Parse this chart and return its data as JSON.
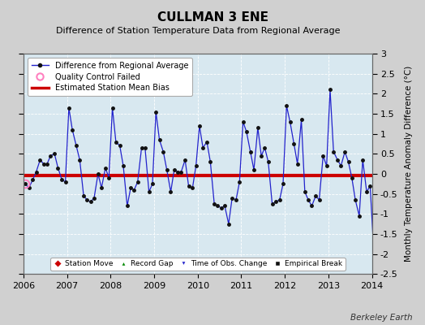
{
  "title": "CULLMAN 3 ENE",
  "subtitle": "Difference of Station Temperature Data from Regional Average",
  "ylabel": "Monthly Temperature Anomaly Difference (°C)",
  "xlabel_years": [
    2006,
    2007,
    2008,
    2009,
    2010,
    2011,
    2012,
    2013,
    2014
  ],
  "ylim": [
    -2.5,
    3.0
  ],
  "yticks": [
    -2.5,
    -2,
    -1.5,
    -1,
    -0.5,
    0,
    0.5,
    1,
    1.5,
    2,
    2.5,
    3
  ],
  "ytick_labels": [
    "-2.5",
    "-2",
    "-1.5",
    "-1",
    "-0.5",
    "0",
    "0.5",
    "1",
    "1.5",
    "2",
    "2.5",
    "3"
  ],
  "bias_value": -0.05,
  "fig_bg_color": "#d0d0d0",
  "plot_bg_color": "#d8e8f0",
  "line_color": "#2222cc",
  "bias_color": "#cc0000",
  "qc_color": "#ff80c0",
  "watermark": "Berkeley Earth",
  "times": [
    2006.04,
    2006.12,
    2006.21,
    2006.29,
    2006.38,
    2006.46,
    2006.54,
    2006.62,
    2006.71,
    2006.79,
    2006.88,
    2006.96,
    2007.04,
    2007.12,
    2007.21,
    2007.29,
    2007.38,
    2007.46,
    2007.54,
    2007.62,
    2007.71,
    2007.79,
    2007.88,
    2007.96,
    2008.04,
    2008.12,
    2008.21,
    2008.29,
    2008.38,
    2008.46,
    2008.54,
    2008.62,
    2008.71,
    2008.79,
    2008.88,
    2008.96,
    2009.04,
    2009.12,
    2009.21,
    2009.29,
    2009.38,
    2009.46,
    2009.54,
    2009.62,
    2009.71,
    2009.79,
    2009.88,
    2009.96,
    2010.04,
    2010.12,
    2010.21,
    2010.29,
    2010.38,
    2010.46,
    2010.54,
    2010.62,
    2010.71,
    2010.79,
    2010.88,
    2010.96,
    2011.04,
    2011.12,
    2011.21,
    2011.29,
    2011.38,
    2011.46,
    2011.54,
    2011.62,
    2011.71,
    2011.79,
    2011.88,
    2011.96,
    2012.04,
    2012.12,
    2012.21,
    2012.29,
    2012.38,
    2012.46,
    2012.54,
    2012.62,
    2012.71,
    2012.79,
    2012.88,
    2012.96,
    2013.04,
    2013.12,
    2013.21,
    2013.29,
    2013.38,
    2013.46,
    2013.54,
    2013.62,
    2013.71,
    2013.79,
    2013.88,
    2013.96,
    2014.04
  ],
  "values": [
    -0.25,
    -0.35,
    -0.15,
    0.05,
    0.35,
    0.25,
    0.25,
    0.45,
    0.5,
    0.15,
    -0.15,
    -0.2,
    1.65,
    1.1,
    0.7,
    0.35,
    -0.55,
    -0.65,
    -0.7,
    -0.6,
    0.0,
    -0.35,
    0.15,
    -0.1,
    1.65,
    0.8,
    0.7,
    0.2,
    -0.8,
    -0.35,
    -0.4,
    -0.2,
    0.65,
    0.65,
    -0.45,
    -0.25,
    1.55,
    0.85,
    0.55,
    0.1,
    -0.45,
    0.1,
    0.05,
    0.05,
    0.35,
    -0.3,
    -0.35,
    0.2,
    1.2,
    0.65,
    0.8,
    0.3,
    -0.75,
    -0.8,
    -0.85,
    -0.8,
    -1.25,
    -0.6,
    -0.65,
    -0.2,
    1.3,
    1.05,
    0.55,
    0.1,
    1.15,
    0.45,
    0.65,
    0.3,
    -0.75,
    -0.7,
    -0.65,
    -0.25,
    1.7,
    1.3,
    0.75,
    0.25,
    1.35,
    -0.45,
    -0.65,
    -0.8,
    -0.55,
    -0.65,
    0.45,
    0.2,
    2.1,
    0.55,
    0.35,
    0.2,
    0.55,
    0.3,
    -0.1,
    -0.65,
    -1.05,
    0.35,
    -0.45,
    -0.3,
    -1.85
  ],
  "qc_failed_times": [
    2006.04
  ],
  "qc_failed_values": [
    -0.25
  ]
}
